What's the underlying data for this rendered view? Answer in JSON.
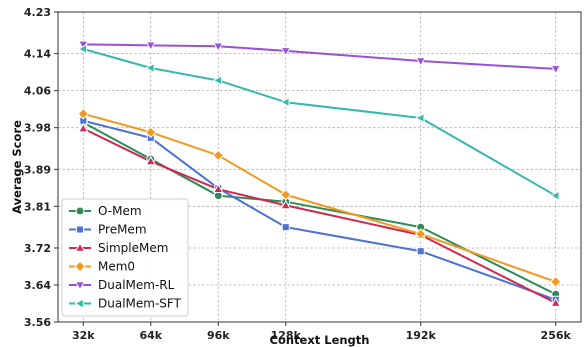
{
  "chart_data": {
    "type": "line",
    "xlabel": "Context Length",
    "ylabel": "Average Score",
    "x": [
      "32k",
      "64k",
      "96k",
      "128k",
      "192k",
      "256k"
    ],
    "x_values": [
      32,
      64,
      96,
      128,
      192,
      256
    ],
    "xlim": [
      20,
      268
    ],
    "ylim": [
      3.56,
      4.23
    ],
    "yticks": [
      3.56,
      3.64,
      3.72,
      3.81,
      3.89,
      3.98,
      4.06,
      4.14,
      4.23
    ],
    "ytick_labels": [
      "3.56",
      "3.64",
      "3.72",
      "3.81",
      "3.89",
      "3.98",
      "4.06",
      "4.14",
      "4.23"
    ],
    "grid": true,
    "legend": "lower-left",
    "series": [
      {
        "name": "O-Mem",
        "color": "#2e8b57",
        "marker": "circle",
        "values": [
          3.991,
          3.912,
          3.833,
          3.82,
          3.765,
          3.62
        ]
      },
      {
        "name": "PreMem",
        "color": "#4c72d8",
        "marker": "square",
        "values": [
          3.995,
          3.958,
          3.849,
          3.765,
          3.713,
          3.608
        ]
      },
      {
        "name": "SimpleMem",
        "color": "#d0284e",
        "marker": "triangle-up",
        "values": [
          3.978,
          3.907,
          3.847,
          3.812,
          3.748,
          3.601
        ]
      },
      {
        "name": "Mem0",
        "color": "#f39a1e",
        "marker": "diamond",
        "values": [
          4.01,
          3.97,
          3.92,
          3.835,
          3.75,
          3.647
        ]
      },
      {
        "name": "DualMem-RL",
        "color": "#9b4fd6",
        "marker": "triangle-down",
        "values": [
          4.16,
          4.158,
          4.156,
          4.146,
          4.124,
          4.107
        ]
      },
      {
        "name": "DualMem-SFT",
        "color": "#36b8ad",
        "marker": "triangle-left",
        "values": [
          4.15,
          4.109,
          4.082,
          4.035,
          4.001,
          3.833
        ]
      }
    ]
  }
}
